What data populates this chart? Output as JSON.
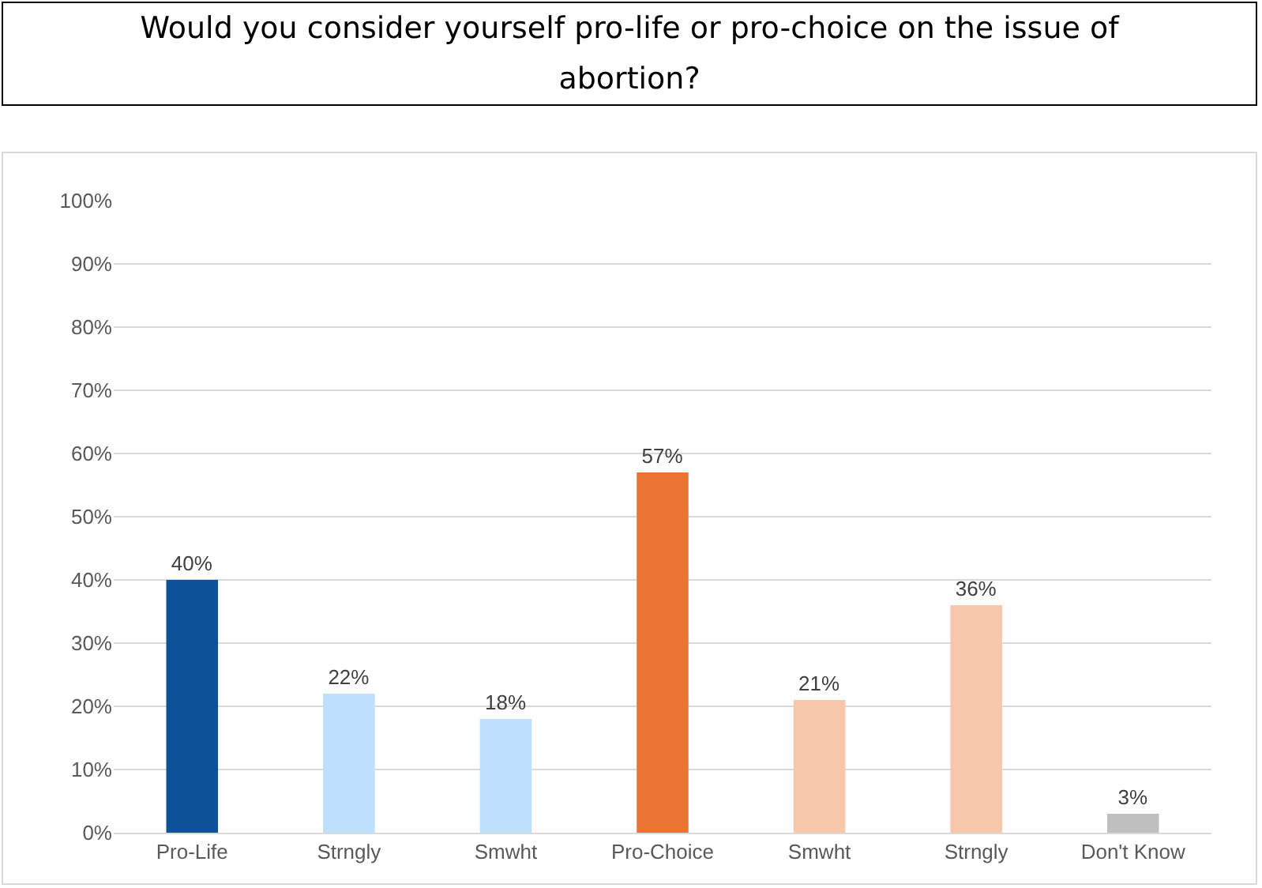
{
  "chart_data": {
    "type": "bar",
    "title": "Would you consider yourself pro-life or pro-choice on the issue of abortion?",
    "categories": [
      "Pro-Life",
      "Strngly",
      "Smwht",
      "Pro-Choice",
      "Smwht",
      "Strngly",
      "Don't Know"
    ],
    "values": [
      40,
      22,
      18,
      57,
      21,
      36,
      3
    ],
    "colors": [
      "#0b5396",
      "#bfdfff",
      "#bfdfff",
      "#e97434",
      "#f6c7ab",
      "#f6c7ab",
      "#bfbfbf"
    ],
    "value_labels": [
      "40%",
      "22%",
      "18%",
      "57%",
      "21%",
      "36%",
      "3%"
    ],
    "ylim": [
      0,
      100
    ],
    "yticks": [
      {
        "value": 0,
        "label": "0%"
      },
      {
        "value": 10,
        "label": "10%"
      },
      {
        "value": 20,
        "label": "20%"
      },
      {
        "value": 30,
        "label": "30%"
      },
      {
        "value": 40,
        "label": "40%"
      },
      {
        "value": 50,
        "label": "50%"
      },
      {
        "value": 60,
        "label": "60%"
      },
      {
        "value": 70,
        "label": "70%"
      },
      {
        "value": 80,
        "label": "80%"
      },
      {
        "value": 90,
        "label": "90%"
      },
      {
        "value": 100,
        "label": "100%"
      }
    ],
    "grid": "y"
  }
}
